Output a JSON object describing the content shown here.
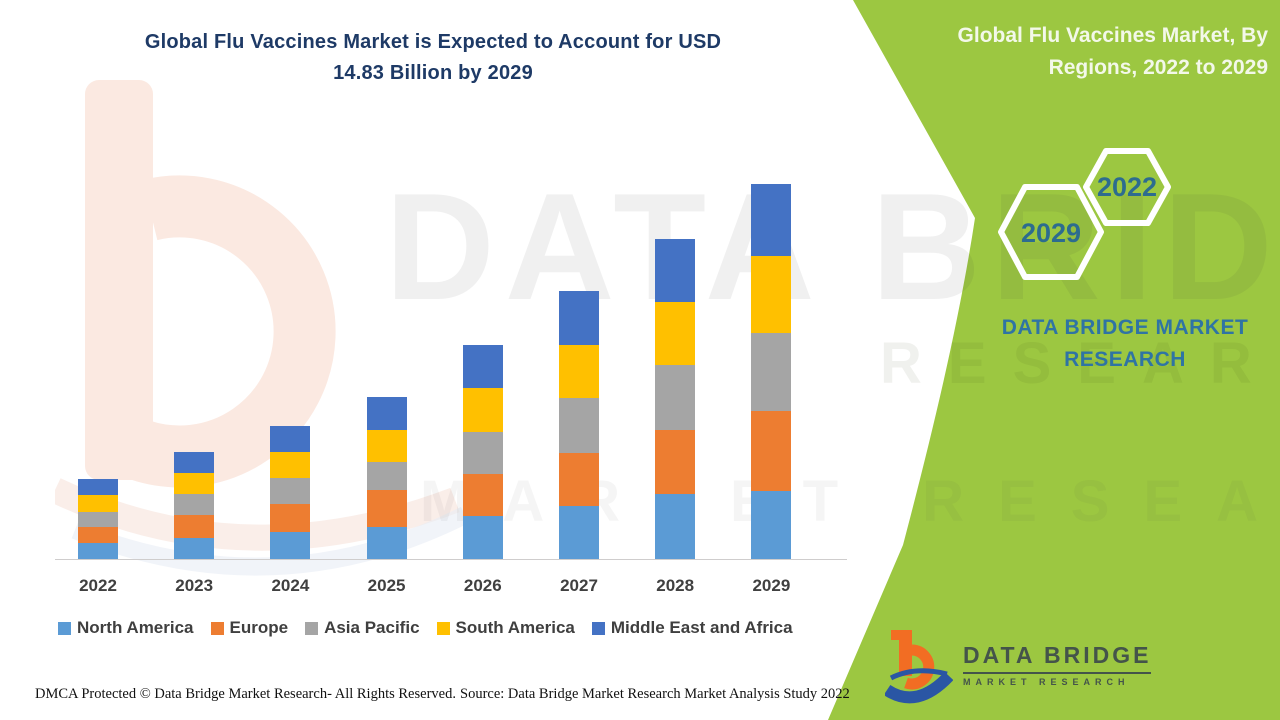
{
  "title_line1": "Global Flu Vaccines Market is Expected to Account for USD",
  "title_line2": "14.83 Billion by 2029",
  "panel": {
    "title_line1": "Global Flu Vaccines Market, By",
    "title_line2": "Regions, 2022 to 2029",
    "hexagons": [
      "2029",
      "2022"
    ],
    "brand_line1": "DATA BRIDGE MARKET",
    "brand_line2": "RESEARCH",
    "logo_line1": "DATA BRIDGE",
    "logo_line2": "MARKET RESEARCH"
  },
  "watermark": {
    "big": "DATA BRIDGE",
    "row": "MARKET RESEARCH",
    "row2": "RESEARCH"
  },
  "footer": {
    "dmca": "DMCA Protected © Data Bridge Market Research- All Rights Reserved.",
    "source": "Source: Data Bridge Market Research Market Analysis Study 2022"
  },
  "colors": {
    "panel_green": "#9cc741",
    "title_blue": "#1e3a66",
    "panel_title_text": "#f3f8e9",
    "hex_text": "#2d6c8f",
    "brand_text": "#2f74a4",
    "logo_orange": "#f26d23",
    "logo_blue": "#2a56a4",
    "axis_gray": "#cfcdcd"
  },
  "chart_data": {
    "type": "bar",
    "stacked": true,
    "title": "Global Flu Vaccines Market, By Regions, 2022 to 2029",
    "unit": "USD Billion",
    "categories": [
      "2022",
      "2023",
      "2024",
      "2025",
      "2026",
      "2027",
      "2028",
      "2029"
    ],
    "series": [
      {
        "name": "North America",
        "color": "#5B9BD5",
        "values": [
          0.63,
          0.83,
          1.07,
          1.27,
          1.7,
          2.1,
          2.57,
          2.69
        ]
      },
      {
        "name": "Europe",
        "color": "#ED7D31",
        "values": [
          0.63,
          0.91,
          1.11,
          1.46,
          1.66,
          2.1,
          2.53,
          3.16
        ]
      },
      {
        "name": "Asia Pacific",
        "color": "#A5A5A5",
        "values": [
          0.59,
          0.83,
          1.03,
          1.11,
          1.66,
          2.17,
          2.57,
          3.08
        ]
      },
      {
        "name": "South America",
        "color": "#FFC000",
        "values": [
          0.67,
          0.83,
          1.03,
          1.27,
          1.74,
          2.1,
          2.49,
          3.04
        ]
      },
      {
        "name": "Middle East and Africa",
        "color": "#4472C4",
        "values": [
          0.63,
          0.83,
          1.03,
          1.3,
          1.7,
          2.13,
          2.49,
          2.85
        ]
      }
    ],
    "totals": [
      3.15,
      4.23,
      5.27,
      6.41,
      8.46,
      10.6,
      12.65,
      14.83
    ],
    "ylim": [
      0,
      15
    ],
    "grid": false,
    "legend_position": "bottom",
    "value_axis_visible": false
  }
}
